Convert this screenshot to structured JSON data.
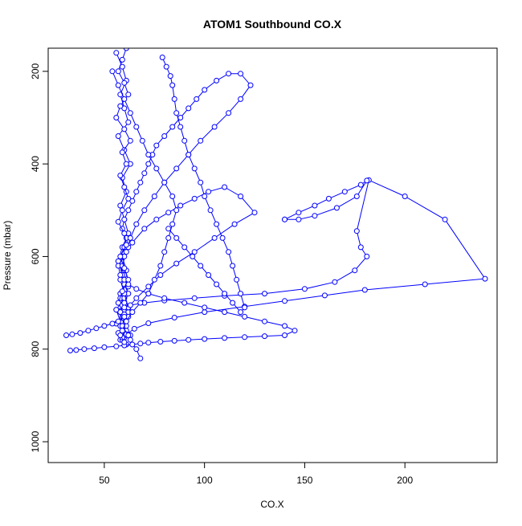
{
  "chart_data": {
    "type": "scatter",
    "title": "ATOM1 Southbound CO.X",
    "xlabel": "CO.X",
    "ylabel": "Pressure (mbar)",
    "xlim": [
      22,
      246
    ],
    "ylim": [
      1045,
      150
    ],
    "y_reversed": true,
    "x_ticks": [
      "50",
      "100",
      "150",
      "200"
    ],
    "y_ticks": [
      "200",
      "400",
      "600",
      "800",
      "1000"
    ],
    "grid": false,
    "legend": "none",
    "marker": "open-circle",
    "connected": true,
    "color": "#0000ff",
    "series": [
      {
        "x": [
          56,
          59,
          61,
          58,
          60,
          62,
          57,
          60,
          63,
          59,
          61,
          58,
          60,
          62,
          59,
          57,
          60,
          61,
          58,
          60,
          62,
          59,
          56,
          60,
          63,
          58,
          61,
          59,
          57,
          60,
          62,
          58,
          60,
          61,
          59,
          64,
          70,
          76,
          82,
          88,
          95,
          102,
          110,
          118,
          125,
          115,
          105,
          95,
          86,
          78,
          72,
          66,
          62,
          60,
          58,
          61,
          59,
          60,
          58,
          56,
          60,
          62,
          59,
          57,
          60
        ],
        "y": [
          160,
          190,
          220,
          250,
          280,
          310,
          340,
          370,
          400,
          430,
          460,
          490,
          520,
          550,
          580,
          610,
          640,
          660,
          680,
          700,
          715,
          730,
          745,
          760,
          770,
          780,
          790,
          780,
          765,
          745,
          720,
          690,
          660,
          630,
          600,
          570,
          540,
          520,
          505,
          490,
          475,
          460,
          450,
          470,
          505,
          530,
          560,
          590,
          615,
          640,
          665,
          690,
          710,
          730,
          750,
          765,
          775,
          760,
          740,
          715,
          690,
          665,
          640,
          610,
          580
        ]
      },
      {
        "x": [
          68,
          66,
          63,
          61,
          59,
          58,
          60,
          62,
          60,
          58,
          57,
          60,
          62,
          61,
          59,
          60,
          62,
          64,
          66,
          68,
          70,
          72,
          74,
          76,
          80,
          84,
          88,
          92,
          96,
          100,
          106,
          112,
          118,
          123,
          118,
          112,
          105,
          98,
          92,
          86,
          80,
          75,
          70,
          66,
          63,
          61,
          59,
          58,
          60,
          62
        ],
        "y": [
          820,
          800,
          780,
          760,
          740,
          720,
          700,
          680,
          660,
          640,
          620,
          600,
          580,
          560,
          540,
          520,
          500,
          480,
          460,
          440,
          420,
          400,
          380,
          360,
          340,
          320,
          300,
          280,
          260,
          240,
          220,
          205,
          205,
          230,
          260,
          290,
          320,
          350,
          380,
          410,
          440,
          470,
          500,
          530,
          560,
          590,
          620,
          650,
          680,
          710
        ]
      },
      {
        "x": [
          31,
          34,
          38,
          42,
          46,
          50,
          54,
          57,
          60,
          62,
          60,
          58,
          56,
          60,
          63,
          70,
          80,
          95,
          110,
          130,
          150,
          165,
          175,
          181,
          178,
          176,
          182,
          200,
          220,
          240,
          210,
          180,
          160,
          140,
          120,
          100,
          85,
          72,
          65,
          61
        ],
        "y": [
          770,
          768,
          765,
          760,
          755,
          750,
          745,
          740,
          735,
          730,
          725,
          720,
          715,
          710,
          705,
          700,
          695,
          690,
          685,
          680,
          670,
          655,
          630,
          600,
          580,
          545,
          435,
          470,
          520,
          648,
          660,
          672,
          684,
          696,
          708,
          720,
          732,
          744,
          756,
          768
        ]
      },
      {
        "x": [
          33,
          36,
          40,
          45,
          50,
          56,
          60,
          64,
          68,
          72,
          78,
          85,
          92,
          100,
          110,
          120,
          130,
          140,
          145,
          140,
          130,
          120,
          110,
          100,
          90,
          80,
          72,
          66,
          62,
          60
        ],
        "y": [
          803,
          802,
          800,
          798,
          796,
          794,
          792,
          790,
          788,
          786,
          784,
          782,
          780,
          778,
          776,
          774,
          772,
          770,
          760,
          750,
          740,
          730,
          720,
          710,
          700,
          690,
          680,
          670,
          660,
          650
        ]
      },
      {
        "x": [
          140,
          147,
          155,
          162,
          170,
          178,
          181,
          176,
          166,
          155,
          147,
          140
        ],
        "y": [
          520,
          505,
          490,
          475,
          460,
          445,
          436,
          470,
          495,
          512,
          520,
          520
        ]
      },
      {
        "x": [
          61,
          59,
          57,
          60,
          62,
          58,
          56,
          60,
          63,
          59,
          61,
          58,
          60,
          62,
          59,
          57,
          60,
          61,
          58,
          60,
          62,
          59,
          57,
          60,
          61,
          58,
          60,
          62,
          59,
          60
        ],
        "y": [
          150,
          175,
          200,
          225,
          250,
          275,
          300,
          325,
          350,
          375,
          400,
          425,
          450,
          475,
          500,
          525,
          550,
          575,
          600,
          625,
          650,
          675,
          700,
          725,
          750,
          770,
          785,
          770,
          750,
          730
        ]
      },
      {
        "x": [
          54,
          57,
          60,
          63,
          66,
          69,
          72,
          76,
          80,
          84,
          86,
          84,
          82,
          80,
          78,
          75,
          72,
          68,
          64,
          61,
          59
        ],
        "y": [
          200,
          230,
          260,
          290,
          320,
          350,
          380,
          410,
          440,
          470,
          500,
          530,
          560,
          590,
          620,
          650,
          680,
          700,
          720,
          740,
          760
        ]
      },
      {
        "x": [
          79,
          81,
          83,
          84,
          85,
          86,
          88,
          90,
          92,
          95,
          98,
          100,
          103,
          106,
          109,
          112,
          114,
          116,
          118,
          120,
          118,
          114,
          110,
          106,
          102,
          98,
          94,
          90,
          86,
          82
        ],
        "y": [
          170,
          190,
          210,
          230,
          260,
          290,
          320,
          350,
          380,
          410,
          440,
          470,
          500,
          530,
          560,
          590,
          620,
          650,
          680,
          710,
          720,
          700,
          680,
          660,
          640,
          620,
          600,
          580,
          560,
          540
        ]
      }
    ]
  }
}
